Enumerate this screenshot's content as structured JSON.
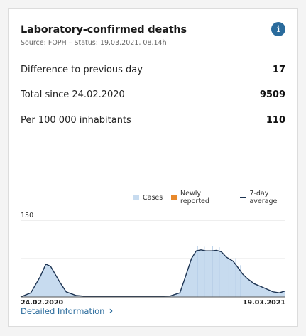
{
  "card": {
    "title": "Laboratory-confirmed deaths",
    "source": "Source: FOPH – Status: 19.03.2021, 08.14h",
    "info_icon": "info-icon"
  },
  "stats": [
    {
      "label": "Difference to previous day",
      "value": "17"
    },
    {
      "label": "Total since 24.02.2020",
      "value": "9509"
    },
    {
      "label": "Per 100 000 inhabitants",
      "value": "110"
    }
  ],
  "legend": {
    "cases": "Cases",
    "newly": "Newly reported",
    "avg": "7-day average"
  },
  "colors": {
    "cases": "#c7dbef",
    "newly": "#e8892b",
    "avg": "#1c3352",
    "link": "#2a6b9c"
  },
  "link": {
    "label": "Detailed Information"
  },
  "chart_data": {
    "type": "area",
    "y_tick_label": "150",
    "ylim": [
      0,
      150
    ],
    "x_labels": [
      "24.02.2020",
      "19.03.2021"
    ],
    "grid": true,
    "legend_placement": "top-right",
    "series": [
      {
        "name": "Cases",
        "kind": "bars"
      },
      {
        "name": "Newly reported",
        "kind": "bars"
      },
      {
        "name": "7-day average",
        "kind": "line"
      }
    ],
    "x": [
      "2020-02-24",
      "2020-03-10",
      "2020-03-24",
      "2020-04-01",
      "2020-04-08",
      "2020-04-15",
      "2020-04-22",
      "2020-05-01",
      "2020-05-15",
      "2020-06-01",
      "2020-07-01",
      "2020-08-01",
      "2020-09-01",
      "2020-10-01",
      "2020-10-15",
      "2020-10-22",
      "2020-11-01",
      "2020-11-08",
      "2020-11-15",
      "2020-11-22",
      "2020-12-01",
      "2020-12-08",
      "2020-12-15",
      "2020-12-22",
      "2021-01-01",
      "2021-01-08",
      "2021-01-15",
      "2021-01-22",
      "2021-02-01",
      "2021-02-15",
      "2021-03-01",
      "2021-03-10",
      "2021-03-19"
    ],
    "values": [
      0,
      8,
      40,
      64,
      60,
      44,
      28,
      10,
      3,
      1,
      1,
      1,
      1,
      2,
      8,
      35,
      75,
      90,
      92,
      90,
      90,
      91,
      88,
      78,
      70,
      58,
      45,
      36,
      26,
      18,
      10,
      8,
      12
    ]
  }
}
